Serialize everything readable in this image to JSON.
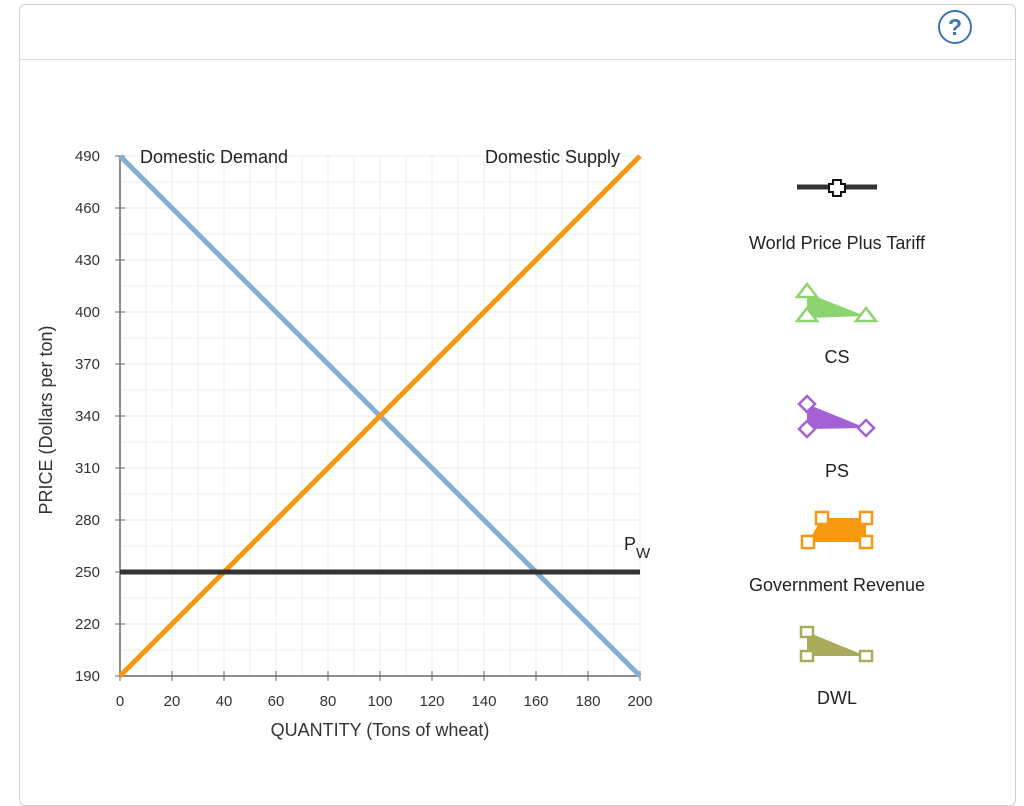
{
  "help": {
    "label": "?"
  },
  "chart_data": {
    "type": "line",
    "xlabel": "QUANTITY (Tons of wheat)",
    "ylabel": "PRICE (Dollars per ton)",
    "xlim": [
      0,
      200
    ],
    "ylim": [
      190,
      490
    ],
    "x_ticks": [
      0,
      20,
      40,
      60,
      80,
      100,
      120,
      140,
      160,
      180,
      200
    ],
    "y_ticks": [
      190,
      220,
      250,
      280,
      310,
      340,
      370,
      400,
      430,
      460,
      490
    ],
    "grid": true,
    "series": [
      {
        "name": "Domestic Demand",
        "color": "#85aed3",
        "points": [
          [
            0,
            490
          ],
          [
            200,
            190
          ]
        ]
      },
      {
        "name": "Domestic Supply",
        "color": "#f7970f",
        "points": [
          [
            0,
            190
          ],
          [
            200,
            490
          ]
        ]
      },
      {
        "name": "P",
        "subscript": "W",
        "color": "#333333",
        "points": [
          [
            0,
            250
          ],
          [
            200,
            250
          ]
        ]
      }
    ],
    "legend": [
      {
        "label": "World Price Plus Tariff",
        "icon": "cross-line-icon",
        "color": "#333333"
      },
      {
        "label": "CS",
        "icon": "triangle-area-icon",
        "color": "#8bd46e"
      },
      {
        "label": "PS",
        "icon": "diamond-area-icon",
        "color": "#a660d6"
      },
      {
        "label": "Government Revenue",
        "icon": "square-area-icon",
        "color": "#f7970f"
      },
      {
        "label": "DWL",
        "icon": "small-square-area-icon",
        "color": "#a8ab5c"
      }
    ]
  }
}
